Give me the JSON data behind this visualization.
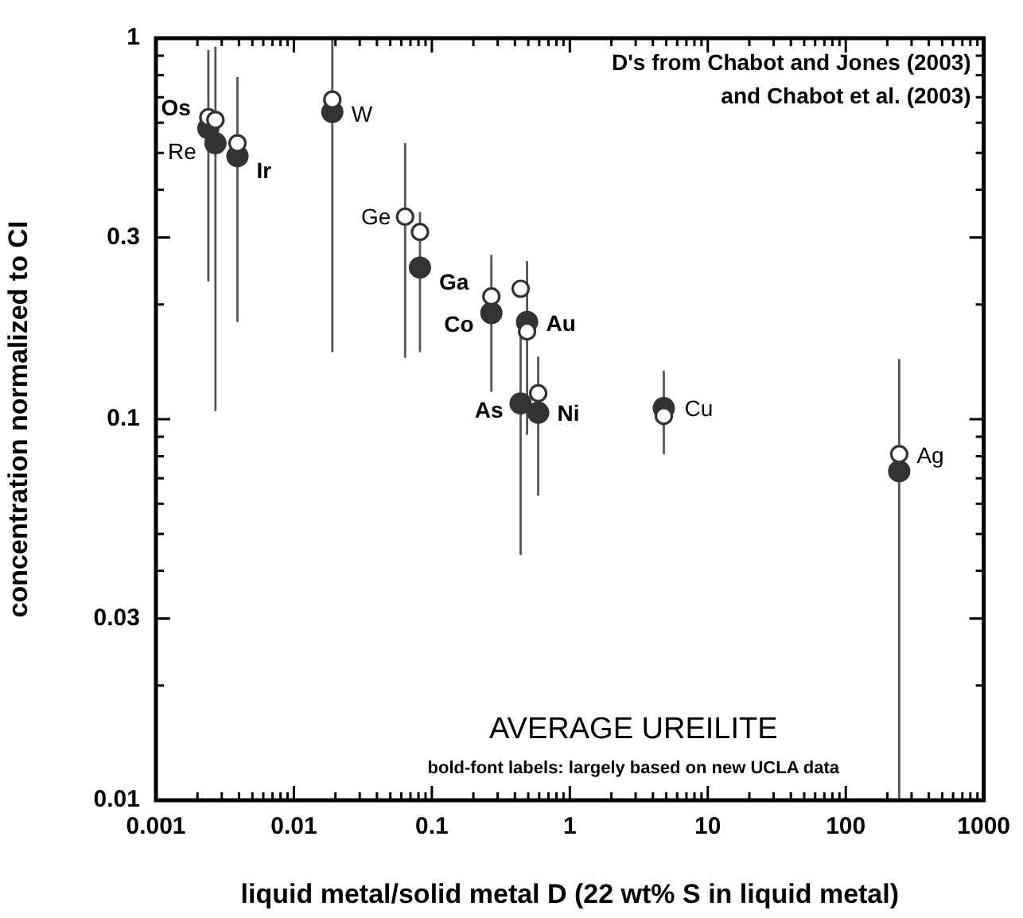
{
  "chart_data": {
    "type": "scatter",
    "xlabel": "liquid metal/solid metal D (22 wt% S in liquid metal)",
    "ylabel": "concentration normalized to CI",
    "log": "xy",
    "grid": false,
    "legend": false,
    "marker": "circle",
    "xlim": [
      0.001,
      1000
    ],
    "xticks": [
      0.001,
      {
        "value": 0.002,
        "label": null
      },
      {
        "value": 0.003,
        "label": null
      },
      {
        "value": 0.004,
        "label": null
      },
      {
        "value": 0.005,
        "label": null
      },
      {
        "value": 0.006,
        "label": null
      },
      {
        "value": 0.007,
        "label": null
      },
      {
        "value": 0.008,
        "label": null
      },
      {
        "value": 0.009,
        "label": null
      },
      0.01,
      {
        "value": 0.02,
        "label": null
      },
      {
        "value": 0.03,
        "label": null
      },
      {
        "value": 0.04,
        "label": null
      },
      {
        "value": 0.05,
        "label": null
      },
      {
        "value": 0.06,
        "label": null
      },
      {
        "value": 0.07,
        "label": null
      },
      {
        "value": 0.08,
        "label": null
      },
      {
        "value": 0.09,
        "label": null
      },
      0.1,
      {
        "value": 0.2,
        "label": null
      },
      {
        "value": 0.3,
        "label": null
      },
      {
        "value": 0.4,
        "label": null
      },
      {
        "value": 0.5,
        "label": null
      },
      {
        "value": 0.6,
        "label": null
      },
      {
        "value": 0.7,
        "label": null
      },
      {
        "value": 0.8,
        "label": null
      },
      {
        "value": 0.9,
        "label": null
      },
      1,
      {
        "value": 2,
        "label": null
      },
      {
        "value": 3,
        "label": null
      },
      {
        "value": 4,
        "label": null
      },
      {
        "value": 5,
        "label": null
      },
      {
        "value": 6,
        "label": null
      },
      {
        "value": 7,
        "label": null
      },
      {
        "value": 8,
        "label": null
      },
      {
        "value": 9,
        "label": null
      },
      10,
      {
        "value": 20,
        "label": null
      },
      {
        "value": 30,
        "label": null
      },
      {
        "value": 40,
        "label": null
      },
      {
        "value": 50,
        "label": null
      },
      {
        "value": 60,
        "label": null
      },
      {
        "value": 70,
        "label": null
      },
      {
        "value": 80,
        "label": null
      },
      {
        "value": 90,
        "label": null
      },
      100,
      {
        "value": 200,
        "label": null
      },
      {
        "value": 300,
        "label": null
      },
      {
        "value": 400,
        "label": null
      },
      {
        "value": 500,
        "label": null
      },
      {
        "value": 600,
        "label": null
      },
      {
        "value": 700,
        "label": null
      },
      {
        "value": 800,
        "label": null
      },
      {
        "value": 900,
        "label": null
      },
      1000
    ],
    "ylim": [
      0.01,
      1
    ],
    "yticks": [
      0.01,
      {
        "value": 0.02,
        "label": null
      },
      0.03,
      {
        "value": 0.04,
        "label": null
      },
      {
        "value": 0.05,
        "label": null
      },
      {
        "value": 0.06,
        "label": null
      },
      {
        "value": 0.07,
        "label": null
      },
      {
        "value": 0.08,
        "label": null
      },
      {
        "value": 0.09,
        "label": null
      },
      0.1,
      {
        "value": 0.2,
        "label": null
      },
      0.3,
      {
        "value": 0.4,
        "label": null
      },
      {
        "value": 0.5,
        "label": null
      },
      {
        "value": 0.6,
        "label": null
      },
      {
        "value": 0.7,
        "label": null
      },
      {
        "value": 0.8,
        "label": null
      },
      {
        "value": 0.9,
        "label": null
      },
      1
    ],
    "series": [
      {
        "color": "#333333",
        "x": [
          0.0024,
          0.0039,
          0.082,
          0.27,
          0.44,
          0.49,
          0.59
        ],
        "values": [
          0.58,
          0.49,
          0.25,
          0.19,
          0.11,
          0.18,
          0.104
        ],
        "errors": [
          [
            0.23,
            0.93
          ],
          [
            0.18,
            0.79
          ],
          [
            0.15,
            0.35
          ],
          [
            0.118,
            0.27
          ],
          [
            0.044,
            0.18
          ],
          [
            0.091,
            0.26
          ],
          [
            0.063,
            0.146
          ]
        ],
        "value_labels": [
          "Os",
          "Ir",
          "Ga",
          "Co",
          "As",
          "Au",
          "Ni"
        ]
      },
      {
        "color": "#333333",
        "x": [
          0.0027,
          0.019,
          4.8,
          244
        ],
        "values": [
          0.53,
          0.64,
          0.107,
          0.073
        ],
        "errors": [
          [
            0.105,
            0.95
          ],
          [
            0.15,
            1
          ],
          [
            0.081,
            0.134
          ],
          [
            0.01,
            0.144
          ]
        ],
        "value_labels": [
          "Re",
          "W",
          "Cu",
          "Ag"
        ]
      },
      {
        "color": "#ffffff",
        "x": [
          0.0024,
          0.0027,
          0.0039,
          0.019,
          0.064,
          0.082,
          0.27,
          0.44,
          0.49,
          0.59,
          4.8,
          244
        ],
        "values": [
          0.62,
          0.61,
          0.53,
          0.69,
          0.34,
          0.31,
          0.21,
          0.22,
          0.17,
          0.117,
          0.102,
          0.081
        ],
        "errors": [
          null,
          null,
          null,
          null,
          [
            0.145,
            0.53
          ],
          null,
          null,
          null,
          null,
          null,
          null,
          null
        ],
        "value_labels": [
          null,
          null,
          null,
          null,
          "Ge",
          null,
          null,
          null,
          null,
          null,
          null,
          null
        ]
      }
    ],
    "annotations": [
      "D's from Chabot and Jones (2003)",
      "and Chabot et al. (2003)",
      "AVERAGE UREILITE",
      "bold-font labels: largely based on new UCLA data"
    ]
  }
}
